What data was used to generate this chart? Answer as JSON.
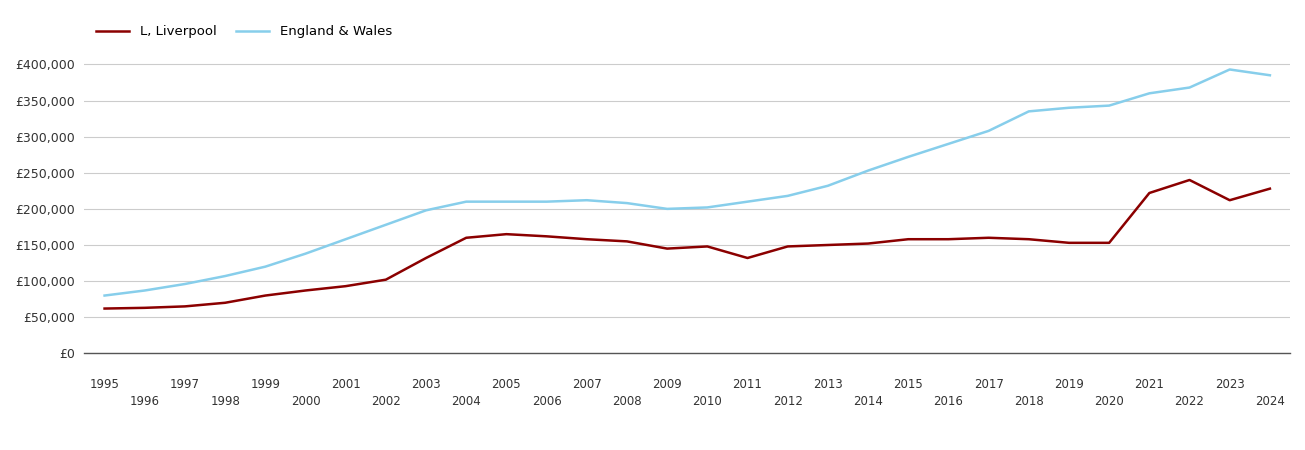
{
  "liverpool_color": "#8B0000",
  "england_color": "#87CEEB",
  "legend_labels": [
    "L, Liverpool",
    "England & Wales"
  ],
  "years": [
    1995,
    1996,
    1997,
    1998,
    1999,
    2000,
    2001,
    2002,
    2003,
    2004,
    2005,
    2006,
    2007,
    2008,
    2009,
    2010,
    2011,
    2012,
    2013,
    2014,
    2015,
    2016,
    2017,
    2018,
    2019,
    2020,
    2021,
    2022,
    2023,
    2024
  ],
  "liverpool": [
    62000,
    63000,
    65000,
    70000,
    80000,
    87000,
    93000,
    102000,
    132000,
    160000,
    165000,
    162000,
    158000,
    155000,
    145000,
    148000,
    132000,
    148000,
    150000,
    152000,
    158000,
    158000,
    160000,
    158000,
    153000,
    153000,
    222000,
    240000,
    212000,
    228000
  ],
  "england_wales": [
    80000,
    87000,
    96000,
    107000,
    120000,
    138000,
    158000,
    178000,
    198000,
    210000,
    210000,
    210000,
    212000,
    208000,
    200000,
    202000,
    210000,
    218000,
    232000,
    253000,
    272000,
    290000,
    308000,
    335000,
    340000,
    343000,
    360000,
    368000,
    393000,
    385000
  ],
  "ylim": [
    0,
    420000
  ],
  "yticks": [
    0,
    50000,
    100000,
    150000,
    200000,
    250000,
    300000,
    350000,
    400000
  ],
  "background_color": "#ffffff",
  "grid_color": "#cccccc",
  "line_width": 1.8
}
